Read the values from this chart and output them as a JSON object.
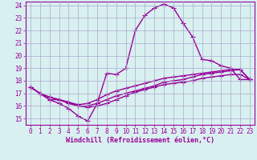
{
  "xlabel": "Windchill (Refroidissement éolien,°C)",
  "bg_color": "#d9f0f0",
  "line_color": "#990099",
  "grid_color": "#aaaacc",
  "x_hours": [
    0,
    1,
    2,
    3,
    4,
    5,
    6,
    7,
    8,
    9,
    10,
    11,
    12,
    13,
    14,
    15,
    16,
    17,
    18,
    19,
    20,
    21,
    22,
    23
  ],
  "series1": [
    17.5,
    17.0,
    16.5,
    16.2,
    15.8,
    15.2,
    14.8,
    16.2,
    18.6,
    18.5,
    19.0,
    22.0,
    23.2,
    23.8,
    24.1,
    23.8,
    22.6,
    21.5,
    19.7,
    19.6,
    19.2,
    19.0,
    18.1,
    18.1
  ],
  "series2": [
    17.5,
    17.0,
    16.5,
    16.5,
    16.2,
    16.0,
    15.9,
    16.0,
    16.2,
    16.5,
    16.8,
    17.1,
    17.3,
    17.5,
    17.7,
    17.8,
    17.9,
    18.0,
    18.2,
    18.3,
    18.4,
    18.5,
    18.5,
    18.1
  ],
  "series3": [
    17.5,
    17.0,
    16.7,
    16.5,
    16.3,
    16.0,
    16.0,
    16.2,
    16.5,
    16.8,
    17.0,
    17.2,
    17.4,
    17.6,
    17.9,
    18.0,
    18.1,
    18.3,
    18.5,
    18.6,
    18.7,
    18.8,
    18.9,
    18.1
  ],
  "series4": [
    17.5,
    17.0,
    16.7,
    16.5,
    16.3,
    16.1,
    16.2,
    16.5,
    16.9,
    17.2,
    17.4,
    17.6,
    17.8,
    18.0,
    18.2,
    18.3,
    18.4,
    18.5,
    18.6,
    18.7,
    18.8,
    18.9,
    18.9,
    18.1
  ],
  "ylim": [
    14.5,
    24.3
  ],
  "xlim": [
    -0.5,
    23.5
  ],
  "yticks": [
    15,
    16,
    17,
    18,
    19,
    20,
    21,
    22,
    23,
    24
  ],
  "xticks": [
    0,
    1,
    2,
    3,
    4,
    5,
    6,
    7,
    8,
    9,
    10,
    11,
    12,
    13,
    14,
    15,
    16,
    17,
    18,
    19,
    20,
    21,
    22,
    23
  ],
  "marker": "+",
  "markersize": 4,
  "linewidth": 1.0,
  "label_fontsize": 6.0,
  "tick_fontsize": 5.5
}
